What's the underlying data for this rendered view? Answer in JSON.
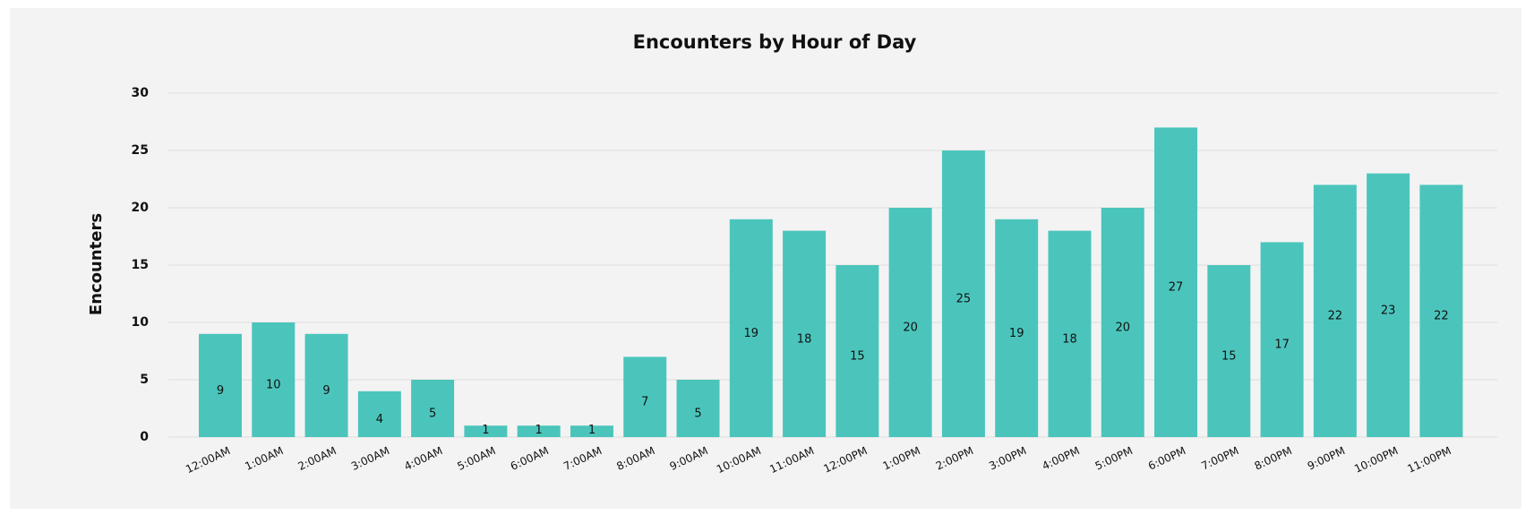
{
  "chart_data": {
    "type": "bar",
    "title": "Encounters by Hour of Day",
    "y_label": "Encounters",
    "categories": [
      "12:00AM",
      "1:00AM",
      "2:00AM",
      "3:00AM",
      "4:00AM",
      "5:00AM",
      "6:00AM",
      "7:00AM",
      "8:00AM",
      "9:00AM",
      "10:00AM",
      "11:00AM",
      "12:00PM",
      "1:00PM",
      "2:00PM",
      "3:00PM",
      "4:00PM",
      "5:00PM",
      "6:00PM",
      "7:00PM",
      "8:00PM",
      "9:00PM",
      "10:00PM",
      "11:00PM"
    ],
    "values": [
      9,
      10,
      9,
      4,
      5,
      1,
      1,
      1,
      7,
      5,
      19,
      18,
      15,
      20,
      25,
      19,
      18,
      20,
      27,
      15,
      17,
      22,
      23,
      22
    ],
    "color": "#4bc5bc",
    "ylim": [
      0,
      30
    ],
    "yticks": [
      0,
      5,
      10,
      15,
      20,
      25,
      30
    ],
    "grid": true
  }
}
